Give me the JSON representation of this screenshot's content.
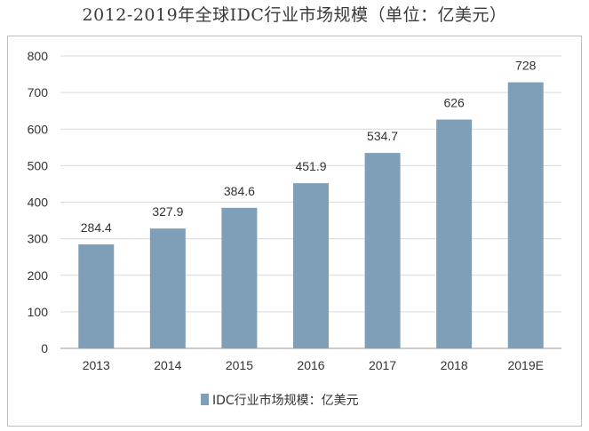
{
  "title": "2012-2019年全球IDC行业市场规模（单位：亿美元）",
  "chart_data": {
    "type": "bar",
    "title": "2012-2019年全球IDC行业市场规模（单位：亿美元）",
    "categories": [
      "2013",
      "2014",
      "2015",
      "2016",
      "2017",
      "2018",
      "2019E"
    ],
    "series": [
      {
        "name": "IDC行业市场规模：亿美元",
        "values": [
          284.4,
          327.9,
          384.6,
          451.9,
          534.7,
          626,
          728
        ],
        "labels": [
          "284.4",
          "327.9",
          "384.6",
          "451.9",
          "534.7",
          "626",
          "728"
        ],
        "color": "#7f9fb8"
      }
    ],
    "ylim": [
      0,
      800
    ],
    "yticks": [
      0,
      100,
      200,
      300,
      400,
      500,
      600,
      700,
      800
    ],
    "grid": true,
    "legend_position": "bottom",
    "xlabel": "",
    "ylabel": ""
  }
}
